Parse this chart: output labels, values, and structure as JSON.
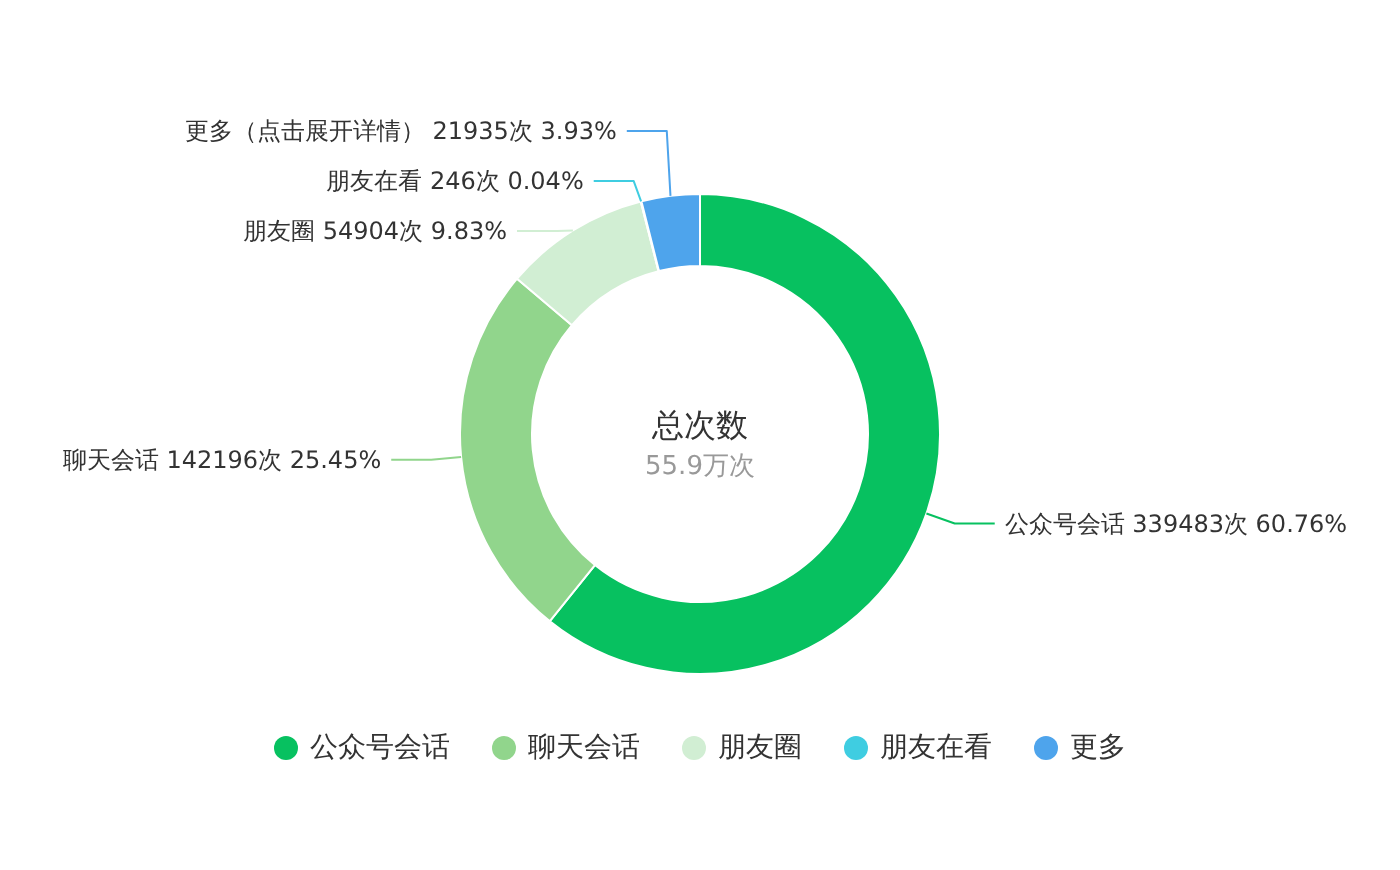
{
  "chart_data": {
    "type": "donut",
    "title": "总次数",
    "subtitle": "55.9万次",
    "categories": [
      "公众号会话",
      "聊天会话",
      "朋友圈",
      "朋友在看",
      "更多"
    ],
    "values": [
      339483,
      142196,
      54904,
      246,
      21935
    ],
    "colors": [
      "#07c160",
      "#91d58c",
      "#d1eed3",
      "#3fcde1",
      "#4ea4ec"
    ],
    "value_labels": [
      "公众号会话 339483次 60.76%",
      "聊天会话 142196次 25.45%",
      "朋友圈 54904次 9.83%",
      "朋友在看 246次 0.04%",
      "更多（点击展开详情） 21935次 3.93%"
    ],
    "legend": "bottom"
  }
}
